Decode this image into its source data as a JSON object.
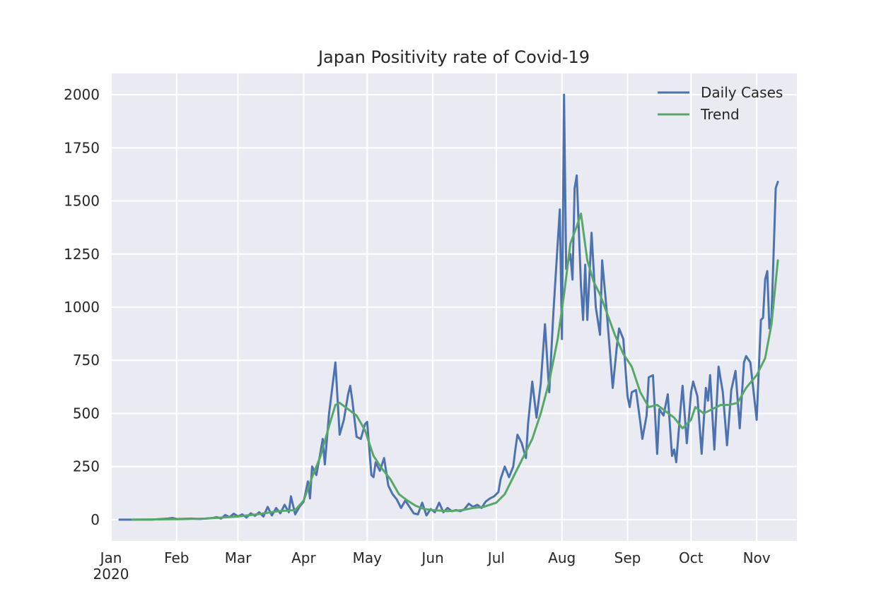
{
  "chart_data": {
    "type": "line",
    "title": "Japan Positivity rate of Covid-19",
    "xlabel": "",
    "ylabel": "",
    "x_start": "2020-01-05",
    "x_end": "2020-11-14",
    "xlim": [
      "2020-01-01",
      "2020-11-20"
    ],
    "ylim": [
      -100,
      2100
    ],
    "grid": true,
    "legend_position": "top-right",
    "background": "#eaeaf2",
    "y_ticks": [
      0,
      250,
      500,
      750,
      1000,
      1250,
      1500,
      1750,
      2000
    ],
    "x_ticks": [
      {
        "date": "2020-01-01",
        "label": "Jan",
        "sublabel": "2020"
      },
      {
        "date": "2020-02-01",
        "label": "Feb"
      },
      {
        "date": "2020-03-01",
        "label": "Mar"
      },
      {
        "date": "2020-04-01",
        "label": "Apr"
      },
      {
        "date": "2020-05-01",
        "label": "May"
      },
      {
        "date": "2020-06-01",
        "label": "Jun"
      },
      {
        "date": "2020-07-01",
        "label": "Jul"
      },
      {
        "date": "2020-08-01",
        "label": "Aug"
      },
      {
        "date": "2020-09-01",
        "label": "Sep"
      },
      {
        "date": "2020-10-01",
        "label": "Oct"
      },
      {
        "date": "2020-11-01",
        "label": "Nov"
      }
    ],
    "series": [
      {
        "name": "Daily Cases",
        "color": "#4c72b0",
        "points": [
          [
            "2020-01-05",
            0
          ],
          [
            "2020-01-20",
            0
          ],
          [
            "2020-01-28",
            5
          ],
          [
            "2020-01-30",
            8
          ],
          [
            "2020-02-01",
            3
          ],
          [
            "2020-02-08",
            5
          ],
          [
            "2020-02-12",
            3
          ],
          [
            "2020-02-18",
            8
          ],
          [
            "2020-02-20",
            12
          ],
          [
            "2020-02-22",
            5
          ],
          [
            "2020-02-24",
            22
          ],
          [
            "2020-02-26",
            12
          ],
          [
            "2020-02-28",
            28
          ],
          [
            "2020-03-01",
            15
          ],
          [
            "2020-03-03",
            25
          ],
          [
            "2020-03-05",
            10
          ],
          [
            "2020-03-07",
            30
          ],
          [
            "2020-03-09",
            18
          ],
          [
            "2020-03-11",
            35
          ],
          [
            "2020-03-13",
            15
          ],
          [
            "2020-03-15",
            60
          ],
          [
            "2020-03-17",
            20
          ],
          [
            "2020-03-19",
            55
          ],
          [
            "2020-03-21",
            30
          ],
          [
            "2020-03-23",
            70
          ],
          [
            "2020-03-25",
            35
          ],
          [
            "2020-03-26",
            110
          ],
          [
            "2020-03-28",
            25
          ],
          [
            "2020-03-30",
            60
          ],
          [
            "2020-04-01",
            85
          ],
          [
            "2020-04-03",
            180
          ],
          [
            "2020-04-04",
            100
          ],
          [
            "2020-04-05",
            250
          ],
          [
            "2020-04-07",
            210
          ],
          [
            "2020-04-09",
            320
          ],
          [
            "2020-04-10",
            380
          ],
          [
            "2020-04-11",
            260
          ],
          [
            "2020-04-13",
            500
          ],
          [
            "2020-04-14",
            580
          ],
          [
            "2020-04-16",
            740
          ],
          [
            "2020-04-18",
            400
          ],
          [
            "2020-04-20",
            470
          ],
          [
            "2020-04-22",
            590
          ],
          [
            "2020-04-23",
            630
          ],
          [
            "2020-04-24",
            560
          ],
          [
            "2020-04-26",
            390
          ],
          [
            "2020-04-28",
            380
          ],
          [
            "2020-04-30",
            450
          ],
          [
            "2020-05-01",
            460
          ],
          [
            "2020-05-03",
            210
          ],
          [
            "2020-05-04",
            200
          ],
          [
            "2020-05-05",
            270
          ],
          [
            "2020-05-07",
            230
          ],
          [
            "2020-05-09",
            290
          ],
          [
            "2020-05-11",
            160
          ],
          [
            "2020-05-13",
            120
          ],
          [
            "2020-05-15",
            95
          ],
          [
            "2020-05-17",
            55
          ],
          [
            "2020-05-19",
            90
          ],
          [
            "2020-05-21",
            60
          ],
          [
            "2020-05-23",
            30
          ],
          [
            "2020-05-25",
            25
          ],
          [
            "2020-05-27",
            80
          ],
          [
            "2020-05-29",
            20
          ],
          [
            "2020-05-31",
            50
          ],
          [
            "2020-06-02",
            35
          ],
          [
            "2020-06-04",
            80
          ],
          [
            "2020-06-06",
            35
          ],
          [
            "2020-06-08",
            55
          ],
          [
            "2020-06-10",
            40
          ],
          [
            "2020-06-12",
            45
          ],
          [
            "2020-06-14",
            40
          ],
          [
            "2020-06-16",
            50
          ],
          [
            "2020-06-18",
            75
          ],
          [
            "2020-06-20",
            60
          ],
          [
            "2020-06-22",
            70
          ],
          [
            "2020-06-24",
            55
          ],
          [
            "2020-06-26",
            85
          ],
          [
            "2020-06-28",
            100
          ],
          [
            "2020-06-30",
            110
          ],
          [
            "2020-07-02",
            130
          ],
          [
            "2020-07-03",
            190
          ],
          [
            "2020-07-05",
            250
          ],
          [
            "2020-07-07",
            200
          ],
          [
            "2020-07-09",
            250
          ],
          [
            "2020-07-10",
            330
          ],
          [
            "2020-07-11",
            400
          ],
          [
            "2020-07-13",
            360
          ],
          [
            "2020-07-15",
            290
          ],
          [
            "2020-07-16",
            450
          ],
          [
            "2020-07-18",
            650
          ],
          [
            "2020-07-20",
            480
          ],
          [
            "2020-07-22",
            640
          ],
          [
            "2020-07-24",
            920
          ],
          [
            "2020-07-26",
            600
          ],
          [
            "2020-07-28",
            980
          ],
          [
            "2020-07-30",
            1300
          ],
          [
            "2020-07-31",
            1460
          ],
          [
            "2020-08-01",
            850
          ],
          [
            "2020-08-02",
            2000
          ],
          [
            "2020-08-03",
            1180
          ],
          [
            "2020-08-05",
            1250
          ],
          [
            "2020-08-06",
            1130
          ],
          [
            "2020-08-07",
            1560
          ],
          [
            "2020-08-08",
            1620
          ],
          [
            "2020-08-10",
            1100
          ],
          [
            "2020-08-11",
            940
          ],
          [
            "2020-08-12",
            1200
          ],
          [
            "2020-08-13",
            940
          ],
          [
            "2020-08-15",
            1350
          ],
          [
            "2020-08-17",
            1000
          ],
          [
            "2020-08-19",
            870
          ],
          [
            "2020-08-20",
            1220
          ],
          [
            "2020-08-22",
            1000
          ],
          [
            "2020-08-24",
            750
          ],
          [
            "2020-08-25",
            620
          ],
          [
            "2020-08-27",
            820
          ],
          [
            "2020-08-28",
            900
          ],
          [
            "2020-08-30",
            850
          ],
          [
            "2020-09-01",
            580
          ],
          [
            "2020-09-02",
            530
          ],
          [
            "2020-09-03",
            600
          ],
          [
            "2020-09-05",
            610
          ],
          [
            "2020-09-07",
            460
          ],
          [
            "2020-09-08",
            380
          ],
          [
            "2020-09-10",
            490
          ],
          [
            "2020-09-11",
            670
          ],
          [
            "2020-09-13",
            680
          ],
          [
            "2020-09-15",
            310
          ],
          [
            "2020-09-16",
            520
          ],
          [
            "2020-09-18",
            490
          ],
          [
            "2020-09-20",
            590
          ],
          [
            "2020-09-22",
            300
          ],
          [
            "2020-09-23",
            330
          ],
          [
            "2020-09-24",
            270
          ],
          [
            "2020-09-26",
            520
          ],
          [
            "2020-09-27",
            630
          ],
          [
            "2020-09-29",
            360
          ],
          [
            "2020-10-01",
            600
          ],
          [
            "2020-10-02",
            650
          ],
          [
            "2020-10-04",
            580
          ],
          [
            "2020-10-06",
            310
          ],
          [
            "2020-10-08",
            620
          ],
          [
            "2020-10-09",
            560
          ],
          [
            "2020-10-10",
            680
          ],
          [
            "2020-10-12",
            330
          ],
          [
            "2020-10-14",
            720
          ],
          [
            "2020-10-16",
            600
          ],
          [
            "2020-10-18",
            350
          ],
          [
            "2020-10-20",
            610
          ],
          [
            "2020-10-22",
            700
          ],
          [
            "2020-10-24",
            430
          ],
          [
            "2020-10-26",
            740
          ],
          [
            "2020-10-27",
            770
          ],
          [
            "2020-10-29",
            740
          ],
          [
            "2020-11-01",
            470
          ],
          [
            "2020-11-03",
            940
          ],
          [
            "2020-11-04",
            950
          ],
          [
            "2020-11-05",
            1130
          ],
          [
            "2020-11-06",
            1170
          ],
          [
            "2020-11-07",
            900
          ],
          [
            "2020-11-08",
            950
          ],
          [
            "2020-11-10",
            1560
          ],
          [
            "2020-11-11",
            1590
          ]
        ]
      },
      {
        "name": "Trend",
        "color": "#55a868",
        "points": [
          [
            "2020-01-11",
            0
          ],
          [
            "2020-02-01",
            2
          ],
          [
            "2020-02-15",
            5
          ],
          [
            "2020-03-01",
            15
          ],
          [
            "2020-03-10",
            25
          ],
          [
            "2020-03-20",
            40
          ],
          [
            "2020-03-28",
            45
          ],
          [
            "2020-04-01",
            90
          ],
          [
            "2020-04-05",
            200
          ],
          [
            "2020-04-09",
            300
          ],
          [
            "2020-04-13",
            440
          ],
          [
            "2020-04-16",
            540
          ],
          [
            "2020-04-18",
            550
          ],
          [
            "2020-04-22",
            520
          ],
          [
            "2020-04-26",
            490
          ],
          [
            "2020-04-30",
            420
          ],
          [
            "2020-05-04",
            300
          ],
          [
            "2020-05-08",
            240
          ],
          [
            "2020-05-12",
            190
          ],
          [
            "2020-05-16",
            120
          ],
          [
            "2020-05-20",
            90
          ],
          [
            "2020-05-24",
            65
          ],
          [
            "2020-05-28",
            50
          ],
          [
            "2020-06-01",
            45
          ],
          [
            "2020-06-08",
            40
          ],
          [
            "2020-06-15",
            45
          ],
          [
            "2020-06-20",
            55
          ],
          [
            "2020-06-25",
            60
          ],
          [
            "2020-07-01",
            80
          ],
          [
            "2020-07-05",
            120
          ],
          [
            "2020-07-09",
            200
          ],
          [
            "2020-07-13",
            280
          ],
          [
            "2020-07-18",
            380
          ],
          [
            "2020-07-22",
            500
          ],
          [
            "2020-07-26",
            650
          ],
          [
            "2020-07-30",
            850
          ],
          [
            "2020-08-02",
            1060
          ],
          [
            "2020-08-05",
            1300
          ],
          [
            "2020-08-08",
            1380
          ],
          [
            "2020-08-10",
            1440
          ],
          [
            "2020-08-13",
            1220
          ],
          [
            "2020-08-16",
            1120
          ],
          [
            "2020-08-19",
            1060
          ],
          [
            "2020-08-22",
            980
          ],
          [
            "2020-08-26",
            870
          ],
          [
            "2020-08-30",
            780
          ],
          [
            "2020-09-03",
            720
          ],
          [
            "2020-09-07",
            600
          ],
          [
            "2020-09-11",
            530
          ],
          [
            "2020-09-15",
            540
          ],
          [
            "2020-09-19",
            510
          ],
          [
            "2020-09-23",
            480
          ],
          [
            "2020-09-27",
            430
          ],
          [
            "2020-10-01",
            470
          ],
          [
            "2020-10-03",
            530
          ],
          [
            "2020-10-07",
            500
          ],
          [
            "2020-10-11",
            520
          ],
          [
            "2020-10-15",
            540
          ],
          [
            "2020-10-19",
            540
          ],
          [
            "2020-10-23",
            550
          ],
          [
            "2020-10-27",
            620
          ],
          [
            "2020-11-01",
            680
          ],
          [
            "2020-11-05",
            760
          ],
          [
            "2020-11-08",
            920
          ],
          [
            "2020-11-11",
            1220
          ]
        ]
      }
    ]
  }
}
